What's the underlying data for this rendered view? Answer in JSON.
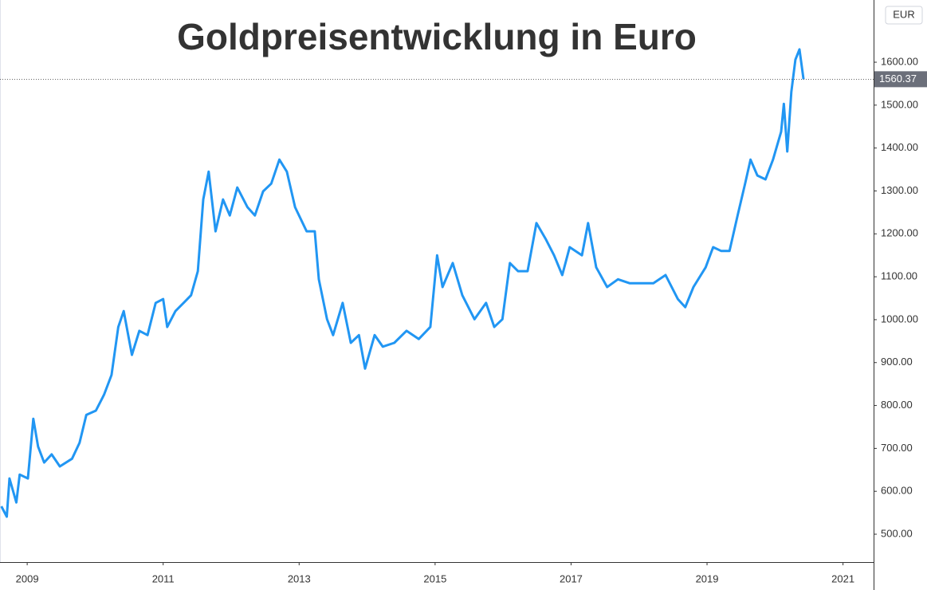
{
  "chart_data": {
    "type": "line",
    "title": "Goldpreisentwicklung in Euro",
    "currency": "EUR",
    "current_value": 1560.37,
    "x": [
      2008.62,
      2008.7,
      2008.74,
      2008.84,
      2008.89,
      2009.01,
      2009.09,
      2009.16,
      2009.25,
      2009.36,
      2009.48,
      2009.66,
      2009.77,
      2009.87,
      2010.01,
      2010.13,
      2010.24,
      2010.34,
      2010.42,
      2010.54,
      2010.65,
      2010.77,
      2010.89,
      2011.0,
      2011.06,
      2011.18,
      2011.3,
      2011.41,
      2011.51,
      2011.59,
      2011.67,
      2011.77,
      2011.88,
      2011.98,
      2012.09,
      2012.24,
      2012.35,
      2012.47,
      2012.59,
      2012.71,
      2012.82,
      2012.94,
      2013.11,
      2013.23,
      2013.29,
      2013.41,
      2013.5,
      2013.64,
      2013.76,
      2013.88,
      2013.97,
      2014.11,
      2014.23,
      2014.4,
      2014.58,
      2014.76,
      2014.93,
      2015.03,
      2015.11,
      2015.26,
      2015.4,
      2015.58,
      2015.75,
      2015.87,
      2015.99,
      2016.1,
      2016.22,
      2016.36,
      2016.49,
      2016.63,
      2016.75,
      2016.87,
      2016.98,
      2017.16,
      2017.25,
      2017.37,
      2017.53,
      2017.69,
      2017.86,
      2018.04,
      2018.21,
      2018.39,
      2018.57,
      2018.68,
      2018.8,
      2018.98,
      2019.09,
      2019.21,
      2019.33,
      2019.45,
      2019.56,
      2019.64,
      2019.74,
      2019.86,
      2019.97,
      2020.09,
      2020.13,
      2020.18,
      2020.24,
      2020.3,
      2020.36,
      2020.42
    ],
    "series": [
      {
        "color": "#2196f3",
        "values": [
          565,
          541,
          630,
          574,
          639,
          630,
          769,
          704,
          667,
          686,
          658,
          676,
          713,
          778,
          788,
          825,
          871,
          983,
          1020,
          918,
          974,
          964,
          1039,
          1048,
          983,
          1020,
          1039,
          1057,
          1113,
          1280,
          1345,
          1206,
          1280,
          1243,
          1308,
          1262,
          1243,
          1299,
          1317,
          1373,
          1345,
          1262,
          1206,
          1206,
          1094,
          1001,
          964,
          1039,
          946,
          964,
          886,
          964,
          937,
          946,
          974,
          955,
          983,
          1150,
          1076,
          1132,
          1057,
          1001,
          1039,
          983,
          1001,
          1132,
          1113,
          1113,
          1225,
          1187,
          1150,
          1104,
          1169,
          1150,
          1225,
          1122,
          1076,
          1094,
          1085,
          1085,
          1085,
          1104,
          1048,
          1029,
          1076,
          1122,
          1169,
          1160,
          1160,
          1243,
          1317,
          1373,
          1336,
          1327,
          1373,
          1438,
          1503,
          1392,
          1531,
          1606,
          1630,
          1560.37
        ]
      }
    ],
    "xlim": [
      2008.6,
      2021.45
    ],
    "xticks": [
      2009,
      2011,
      2013,
      2015,
      2017,
      2019,
      2021
    ],
    "ylim": [
      435,
      1745
    ],
    "yticks": [
      {
        "value": 500,
        "label": "500.00"
      },
      {
        "value": 600,
        "label": "600.00"
      },
      {
        "value": 700,
        "label": "700.00"
      },
      {
        "value": 800,
        "label": "800.00"
      },
      {
        "value": 900,
        "label": "900.00"
      },
      {
        "value": 1000,
        "label": "1000.00"
      },
      {
        "value": 1100,
        "label": "1100.00"
      },
      {
        "value": 1200,
        "label": "1200.00"
      },
      {
        "value": 1300,
        "label": "1300.00"
      },
      {
        "value": 1400,
        "label": "1400.00"
      },
      {
        "value": 1500,
        "label": "1500.00"
      },
      {
        "value": 1600,
        "label": "1600.00"
      }
    ]
  }
}
